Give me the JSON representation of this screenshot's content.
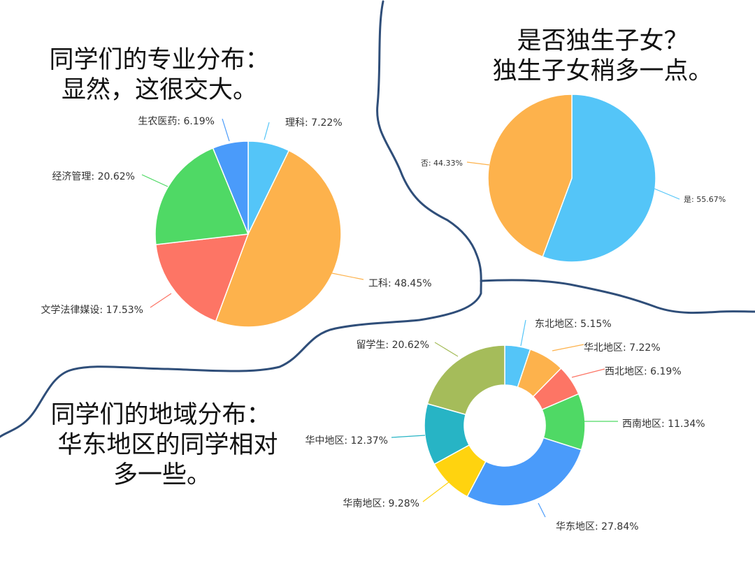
{
  "captions": {
    "major": [
      "同学们的专业分布：",
      "显然，这很交大。"
    ],
    "only_child": [
      "是否独生子女？",
      "独生子女稍多一点。"
    ],
    "region": [
      "同学们的地域分布：",
      "华东地区的同学相对",
      "多一些。"
    ]
  },
  "chart_data": [
    {
      "type": "pie",
      "slices": [
        {
          "name": "理科",
          "value": 7.22,
          "label": "理科: 7.22%",
          "color": "#54c5f8"
        },
        {
          "name": "工科",
          "value": 48.45,
          "label": "工科: 48.45%",
          "color": "#fdb24c"
        },
        {
          "name": "文学法律媒设",
          "value": 17.53,
          "label": "文学法律媒设: 17.53%",
          "color": "#fd7565"
        },
        {
          "name": "经济管理",
          "value": 20.62,
          "label": "经济管理: 20.62%",
          "color": "#4fd965"
        },
        {
          "name": "生农医药",
          "value": 6.19,
          "label": "生农医药: 6.19%",
          "color": "#4a9bfa"
        }
      ]
    },
    {
      "type": "pie",
      "slices": [
        {
          "name": "是",
          "value": 55.67,
          "label": "是: 55.67%",
          "color": "#54c5f8"
        },
        {
          "name": "否",
          "value": 44.33,
          "label": "否: 44.33%",
          "color": "#fdb24c"
        }
      ]
    },
    {
      "type": "pie",
      "variant": "donut",
      "slices": [
        {
          "name": "东北地区",
          "value": 5.15,
          "label": "东北地区: 5.15%",
          "color": "#54c5f8"
        },
        {
          "name": "华北地区",
          "value": 7.22,
          "label": "华北地区: 7.22%",
          "color": "#fdb24c"
        },
        {
          "name": "西北地区",
          "value": 6.19,
          "label": "西北地区: 6.19%",
          "color": "#fd7565"
        },
        {
          "name": "西南地区",
          "value": 11.34,
          "label": "西南地区: 11.34%",
          "color": "#4fd965"
        },
        {
          "name": "华东地区",
          "value": 27.84,
          "label": "华东地区: 27.84%",
          "color": "#4a9bfa"
        },
        {
          "name": "华南地区",
          "value": 9.28,
          "label": "华南地区: 9.28%",
          "color": "#ffd30f"
        },
        {
          "name": "华中地区",
          "value": 12.37,
          "label": "华中地区: 12.37%",
          "color": "#27b4c5"
        },
        {
          "name": "留学生",
          "value": 20.62,
          "label": "留学生: 20.62%",
          "color": "#a5bc5a"
        }
      ]
    }
  ]
}
